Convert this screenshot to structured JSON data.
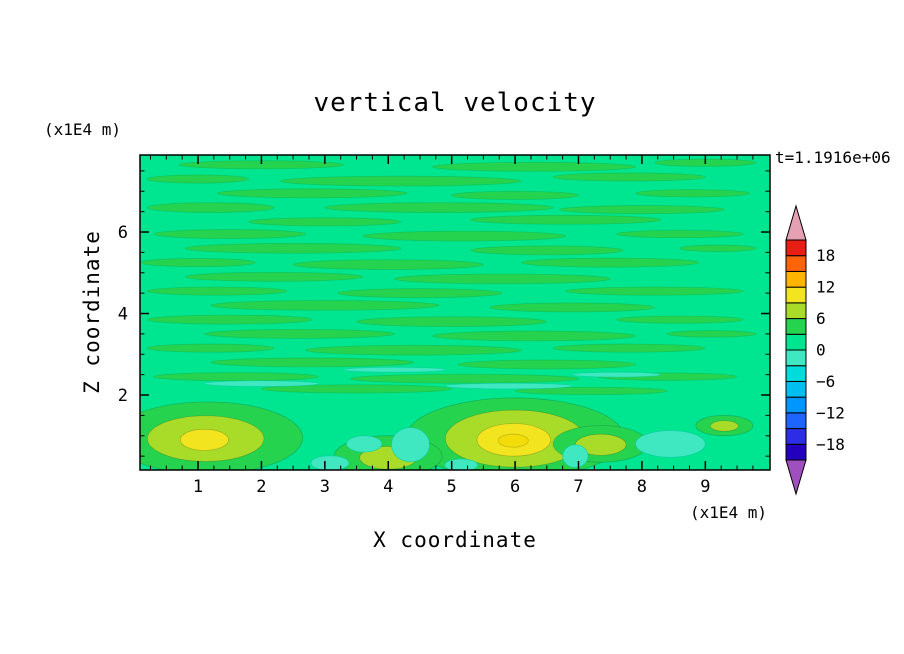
{
  "title": "vertical velocity",
  "timestamp": "t=1.1916e+06",
  "axes": {
    "x": {
      "label": "X coordinate",
      "unit": "(x1E4 m)",
      "range": [
        0.085,
        10.02
      ],
      "ticks": [
        1,
        2,
        3,
        4,
        5,
        6,
        7,
        8,
        9
      ],
      "minor_step": 0.25
    },
    "z": {
      "label": "Z coordinate",
      "unit": "(x1E4 m)",
      "range": [
        0.16,
        7.89
      ],
      "ticks": [
        2,
        4,
        6
      ],
      "minor_step": 0.5
    }
  },
  "colorbar": {
    "labels": [
      18,
      12,
      6,
      0,
      -6,
      -12,
      -18
    ],
    "level_min": -21,
    "level_max": 21,
    "step": 3,
    "box_colors_bottom_to_top": [
      "#2300BE",
      "#2D2DE6",
      "#1E64FF",
      "#0096FF",
      "#00BEF0",
      "#00DCDC",
      "#3FE8C0",
      "#00E690",
      "#26D34F",
      "#A8DC28",
      "#F2E41E",
      "#FFB400",
      "#FF640A",
      "#E61E14"
    ],
    "arrow_top_color": "#E6A0B4",
    "arrow_bottom_color": "#A050BE"
  },
  "chart_data": {
    "type": "contour",
    "title": "vertical velocity",
    "xlabel": "X coordinate (x1E4 m)",
    "ylabel": "Z coordinate (x1E4 m)",
    "time_annotation": "t=1.1916e+06",
    "x_range": [
      0.085,
      10.02
    ],
    "z_range": [
      0.16,
      7.89
    ],
    "contour_interval": 3,
    "levels": [
      -21,
      -18,
      -15,
      -12,
      -9,
      -6,
      -3,
      0,
      3,
      6,
      9,
      12,
      15,
      18,
      21
    ],
    "field_summary": "weak banded vertical velocity (0 to 6) aloft in thin horizontal streaks; near-surface cells with maxima about 9-12 at x=1 and x=6, smaller warm patches at x=4, x=7.3, x=9.3, and weak negative patches (-3 to 0) between the cells near the surface",
    "colors": {
      "background": "#00E690",
      "band": "#26D34F",
      "band_weak_neg": "#3FE8C0",
      "level_6_9": "#A8DC28",
      "level_9_12": "#F2E41E",
      "core": "#F2DC0A"
    },
    "bands": [
      [
        2.0,
        7.65,
        1.3,
        0.1
      ],
      [
        6.3,
        7.6,
        1.6,
        0.11
      ],
      [
        9.0,
        7.7,
        0.8,
        0.09
      ],
      [
        1.0,
        7.3,
        0.8,
        0.1
      ],
      [
        4.2,
        7.25,
        1.9,
        0.12
      ],
      [
        7.8,
        7.35,
        1.2,
        0.1
      ],
      [
        2.8,
        6.95,
        1.5,
        0.11
      ],
      [
        6.0,
        6.9,
        1.0,
        0.1
      ],
      [
        8.8,
        6.95,
        0.9,
        0.09
      ],
      [
        1.2,
        6.6,
        1.0,
        0.12
      ],
      [
        4.8,
        6.6,
        1.8,
        0.12
      ],
      [
        8.0,
        6.55,
        1.3,
        0.1
      ],
      [
        3.0,
        6.25,
        1.2,
        0.1
      ],
      [
        6.8,
        6.3,
        1.5,
        0.11
      ],
      [
        1.5,
        5.95,
        1.2,
        0.11
      ],
      [
        5.2,
        5.9,
        1.6,
        0.12
      ],
      [
        8.6,
        5.95,
        1.0,
        0.09
      ],
      [
        2.5,
        5.6,
        1.7,
        0.12
      ],
      [
        6.5,
        5.55,
        1.2,
        0.11
      ],
      [
        9.2,
        5.6,
        0.6,
        0.08
      ],
      [
        1.0,
        5.25,
        0.9,
        0.1
      ],
      [
        4.0,
        5.2,
        1.5,
        0.12
      ],
      [
        7.5,
        5.25,
        1.4,
        0.11
      ],
      [
        2.2,
        4.9,
        1.4,
        0.11
      ],
      [
        5.8,
        4.85,
        1.7,
        0.12
      ],
      [
        1.3,
        4.55,
        1.1,
        0.1
      ],
      [
        4.5,
        4.5,
        1.3,
        0.11
      ],
      [
        8.2,
        4.55,
        1.4,
        0.1
      ],
      [
        3.0,
        4.2,
        1.8,
        0.12
      ],
      [
        6.9,
        4.15,
        1.3,
        0.11
      ],
      [
        1.5,
        3.85,
        1.3,
        0.11
      ],
      [
        5.0,
        3.8,
        1.5,
        0.12
      ],
      [
        8.6,
        3.85,
        1.0,
        0.09
      ],
      [
        2.6,
        3.5,
        1.5,
        0.11
      ],
      [
        6.3,
        3.45,
        1.6,
        0.12
      ],
      [
        9.1,
        3.5,
        0.7,
        0.08
      ],
      [
        1.2,
        3.15,
        1.0,
        0.1
      ],
      [
        4.4,
        3.1,
        1.7,
        0.12
      ],
      [
        7.8,
        3.15,
        1.2,
        0.1
      ],
      [
        2.8,
        2.8,
        1.6,
        0.11
      ],
      [
        6.5,
        2.75,
        1.4,
        0.11
      ],
      [
        1.6,
        2.45,
        1.3,
        0.1
      ],
      [
        5.2,
        2.4,
        1.8,
        0.11
      ],
      [
        8.4,
        2.45,
        1.1,
        0.09
      ],
      [
        3.5,
        2.15,
        1.5,
        0.1
      ],
      [
        7.2,
        2.1,
        1.2,
        0.09
      ]
    ],
    "weak_neg_bands": [
      [
        2.0,
        2.28,
        0.9,
        0.07
      ],
      [
        5.9,
        2.22,
        1.0,
        0.07
      ],
      [
        4.1,
        2.62,
        0.8,
        0.06
      ],
      [
        7.6,
        2.5,
        0.7,
        0.06
      ]
    ],
    "cells": [
      {
        "layers": [
          {
            "c": [
              1.15,
              0.95
            ],
            "r": [
              1.5,
              0.88
            ],
            "color": "#26D34F"
          },
          {
            "c": [
              1.12,
              0.93
            ],
            "r": [
              0.92,
              0.56
            ],
            "color": "#A8DC28"
          },
          {
            "c": [
              1.1,
              0.9
            ],
            "r": [
              0.38,
              0.26
            ],
            "color": "#F2E41E"
          }
        ]
      },
      {
        "layers": [
          {
            "c": [
              6.0,
              0.95
            ],
            "r": [
              1.72,
              0.98
            ],
            "color": "#26D34F"
          },
          {
            "c": [
              6.0,
              0.93
            ],
            "r": [
              1.1,
              0.7
            ],
            "color": "#A8DC28"
          },
          {
            "c": [
              5.98,
              0.9
            ],
            "r": [
              0.58,
              0.4
            ],
            "color": "#F2E41E"
          },
          {
            "c": [
              5.97,
              0.88
            ],
            "r": [
              0.24,
              0.16
            ],
            "color": "#F2DC0A"
          }
        ]
      },
      {
        "layers": [
          {
            "c": [
              7.35,
              0.8
            ],
            "r": [
              0.75,
              0.45
            ],
            "color": "#26D34F"
          },
          {
            "c": [
              7.35,
              0.78
            ],
            "r": [
              0.4,
              0.26
            ],
            "color": "#A8DC28"
          }
        ]
      },
      {
        "layers": [
          {
            "c": [
              4.0,
              0.5
            ],
            "r": [
              0.85,
              0.5
            ],
            "color": "#26D34F"
          },
          {
            "c": [
              4.0,
              0.46
            ],
            "r": [
              0.45,
              0.28
            ],
            "color": "#A8DC28"
          }
        ]
      },
      {
        "layers": [
          {
            "c": [
              9.3,
              1.25
            ],
            "r": [
              0.45,
              0.25
            ],
            "color": "#26D34F"
          },
          {
            "c": [
              9.3,
              1.24
            ],
            "r": [
              0.22,
              0.13
            ],
            "color": "#A8DC28"
          }
        ]
      }
    ],
    "neg_patches": [
      [
        3.62,
        0.8,
        0.28,
        0.2
      ],
      [
        4.35,
        0.78,
        0.3,
        0.42
      ],
      [
        6.95,
        0.5,
        0.2,
        0.28
      ],
      [
        8.45,
        0.8,
        0.55,
        0.33
      ],
      [
        5.15,
        0.28,
        0.26,
        0.15
      ],
      [
        3.08,
        0.33,
        0.3,
        0.18
      ]
    ]
  }
}
